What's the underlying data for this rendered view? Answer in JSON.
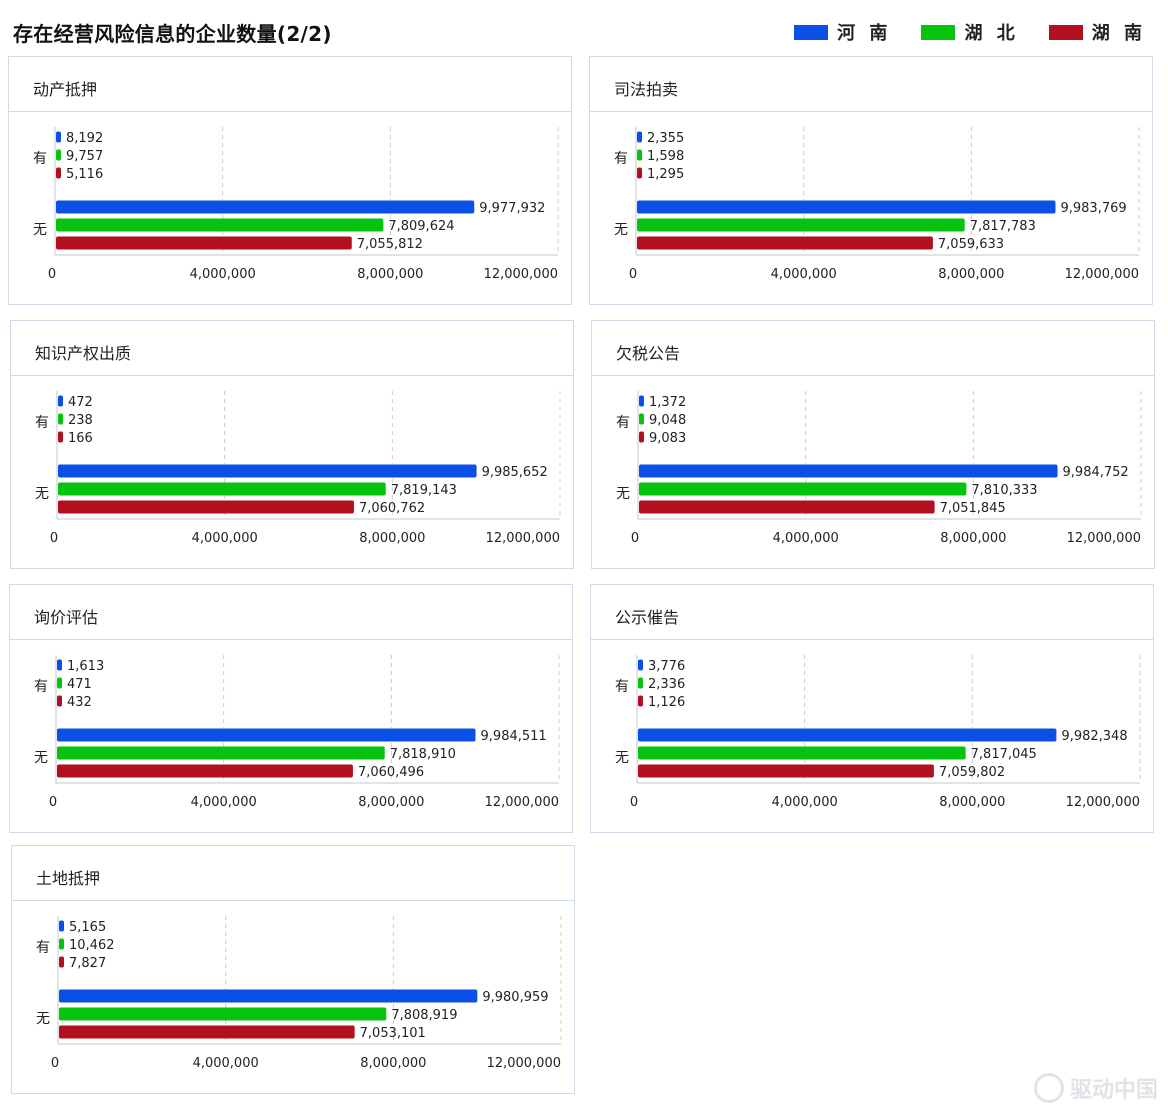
{
  "page": {
    "title": "存在经营风险信息的企业数量(2/2)",
    "legend": [
      {
        "label": "河 南",
        "color": "#0b50e6"
      },
      {
        "label": "湖 北",
        "color": "#06c30e"
      },
      {
        "label": "湖 南",
        "color": "#b2101e"
      }
    ],
    "watermark": "驱动中国"
  },
  "chart_data": [
    {
      "type": "bar",
      "title": "动产抵押",
      "categories": [
        "有",
        "无"
      ],
      "xlim": [
        0,
        12000000
      ],
      "xticks": [
        0,
        4000000,
        8000000,
        12000000
      ],
      "xtick_labels": [
        "0",
        "4,000,000",
        "8,000,000",
        "12,000,000"
      ],
      "series": [
        {
          "name": "河南",
          "values": [
            8192,
            9977932
          ]
        },
        {
          "name": "湖北",
          "values": [
            9757,
            7809624
          ]
        },
        {
          "name": "湖南",
          "values": [
            5116,
            7055812
          ]
        }
      ]
    },
    {
      "type": "bar",
      "title": "司法拍卖",
      "categories": [
        "有",
        "无"
      ],
      "xlim": [
        0,
        12000000
      ],
      "xticks": [
        0,
        4000000,
        8000000,
        12000000
      ],
      "xtick_labels": [
        "0",
        "4,000,000",
        "8,000,000",
        "12,000,000"
      ],
      "series": [
        {
          "name": "河南",
          "values": [
            2355,
            9983769
          ]
        },
        {
          "name": "湖北",
          "values": [
            1598,
            7817783
          ]
        },
        {
          "name": "湖南",
          "values": [
            1295,
            7059633
          ]
        }
      ]
    },
    {
      "type": "bar",
      "title": "知识产权出质",
      "categories": [
        "有",
        "无"
      ],
      "xlim": [
        0,
        12000000
      ],
      "xticks": [
        0,
        4000000,
        8000000,
        12000000
      ],
      "xtick_labels": [
        "0",
        "4,000,000",
        "8,000,000",
        "12,000,000"
      ],
      "series": [
        {
          "name": "河南",
          "values": [
            472,
            9985652
          ]
        },
        {
          "name": "湖北",
          "values": [
            238,
            7819143
          ]
        },
        {
          "name": "湖南",
          "values": [
            166,
            7060762
          ]
        }
      ]
    },
    {
      "type": "bar",
      "title": "欠税公告",
      "categories": [
        "有",
        "无"
      ],
      "xlim": [
        0,
        12000000
      ],
      "xticks": [
        0,
        4000000,
        8000000,
        12000000
      ],
      "xtick_labels": [
        "0",
        "4,000,000",
        "8,000,000",
        "12,000,000"
      ],
      "series": [
        {
          "name": "河南",
          "values": [
            1372,
            9984752
          ]
        },
        {
          "name": "湖北",
          "values": [
            9048,
            7810333
          ]
        },
        {
          "name": "湖南",
          "values": [
            9083,
            7051845
          ]
        }
      ]
    },
    {
      "type": "bar",
      "title": "询价评估",
      "categories": [
        "有",
        "无"
      ],
      "xlim": [
        0,
        12000000
      ],
      "xticks": [
        0,
        4000000,
        8000000,
        12000000
      ],
      "xtick_labels": [
        "0",
        "4,000,000",
        "8,000,000",
        "12,000,000"
      ],
      "series": [
        {
          "name": "河南",
          "values": [
            1613,
            9984511
          ]
        },
        {
          "name": "湖北",
          "values": [
            471,
            7818910
          ]
        },
        {
          "name": "湖南",
          "values": [
            432,
            7060496
          ]
        }
      ]
    },
    {
      "type": "bar",
      "title": "公示催告",
      "categories": [
        "有",
        "无"
      ],
      "xlim": [
        0,
        12000000
      ],
      "xticks": [
        0,
        4000000,
        8000000,
        12000000
      ],
      "xtick_labels": [
        "0",
        "4,000,000",
        "8,000,000",
        "12,000,000"
      ],
      "series": [
        {
          "name": "河南",
          "values": [
            3776,
            9982348
          ]
        },
        {
          "name": "湖北",
          "values": [
            2336,
            7817045
          ]
        },
        {
          "name": "湖南",
          "values": [
            1126,
            7059802
          ]
        }
      ]
    },
    {
      "type": "bar",
      "title": "土地抵押",
      "categories": [
        "有",
        "无"
      ],
      "xlim": [
        0,
        12000000
      ],
      "xticks": [
        0,
        4000000,
        8000000,
        12000000
      ],
      "xtick_labels": [
        "0",
        "4,000,000",
        "8,000,000",
        "12,000,000"
      ],
      "series": [
        {
          "name": "河南",
          "values": [
            5165,
            9980959
          ]
        },
        {
          "name": "湖北",
          "values": [
            10462,
            7808919
          ]
        },
        {
          "name": "湖南",
          "values": [
            7827,
            7053101
          ]
        }
      ]
    }
  ]
}
